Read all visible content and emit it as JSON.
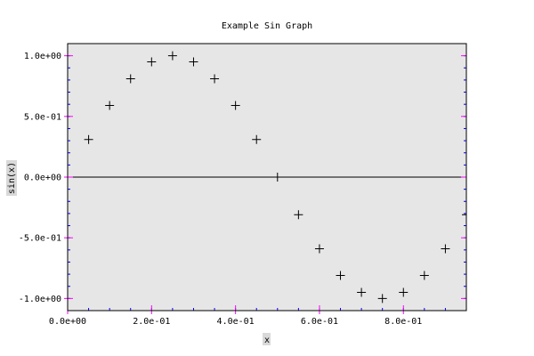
{
  "chart_data": {
    "type": "scatter",
    "title": "Example Sin Graph",
    "xlabel": "x",
    "ylabel": "sin(x)",
    "xlim": [
      0.0,
      0.95
    ],
    "ylim": [
      -1.1,
      1.1
    ],
    "x_ticks": [
      0.0,
      0.2,
      0.4,
      0.6,
      0.8
    ],
    "x_tick_labels": [
      "0.0e+00",
      "2.0e-01",
      "4.0e-01",
      "6.0e-01",
      "8.0e-01"
    ],
    "y_ticks": [
      1.0,
      0.5,
      0.0,
      -0.5,
      -1.0
    ],
    "y_tick_labels": [
      "1.0e+00",
      "5.0e-01",
      "0.0e+00",
      "-5.0e-01",
      "-1.0e+00"
    ],
    "marker": "plus",
    "zero_line": true,
    "grid": false,
    "colors": {
      "plot_background": "#e6e6e6",
      "marker": "#000000",
      "axis_frame": "#000000",
      "major_tick": "#ff00ff",
      "minor_tick": "#0000ff",
      "label_background": "#d9d9d9"
    },
    "x": [
      0.05,
      0.1,
      0.15,
      0.2,
      0.25,
      0.3,
      0.35,
      0.4,
      0.45,
      0.5,
      0.55,
      0.6,
      0.65,
      0.7,
      0.75,
      0.8,
      0.85,
      0.9,
      0.95
    ],
    "y": [
      0.31,
      0.59,
      0.81,
      0.95,
      1.0,
      0.95,
      0.81,
      0.59,
      0.31,
      0.0,
      -0.31,
      -0.59,
      -0.81,
      -0.95,
      -1.0,
      -0.95,
      -0.81,
      -0.59,
      -0.31
    ]
  }
}
